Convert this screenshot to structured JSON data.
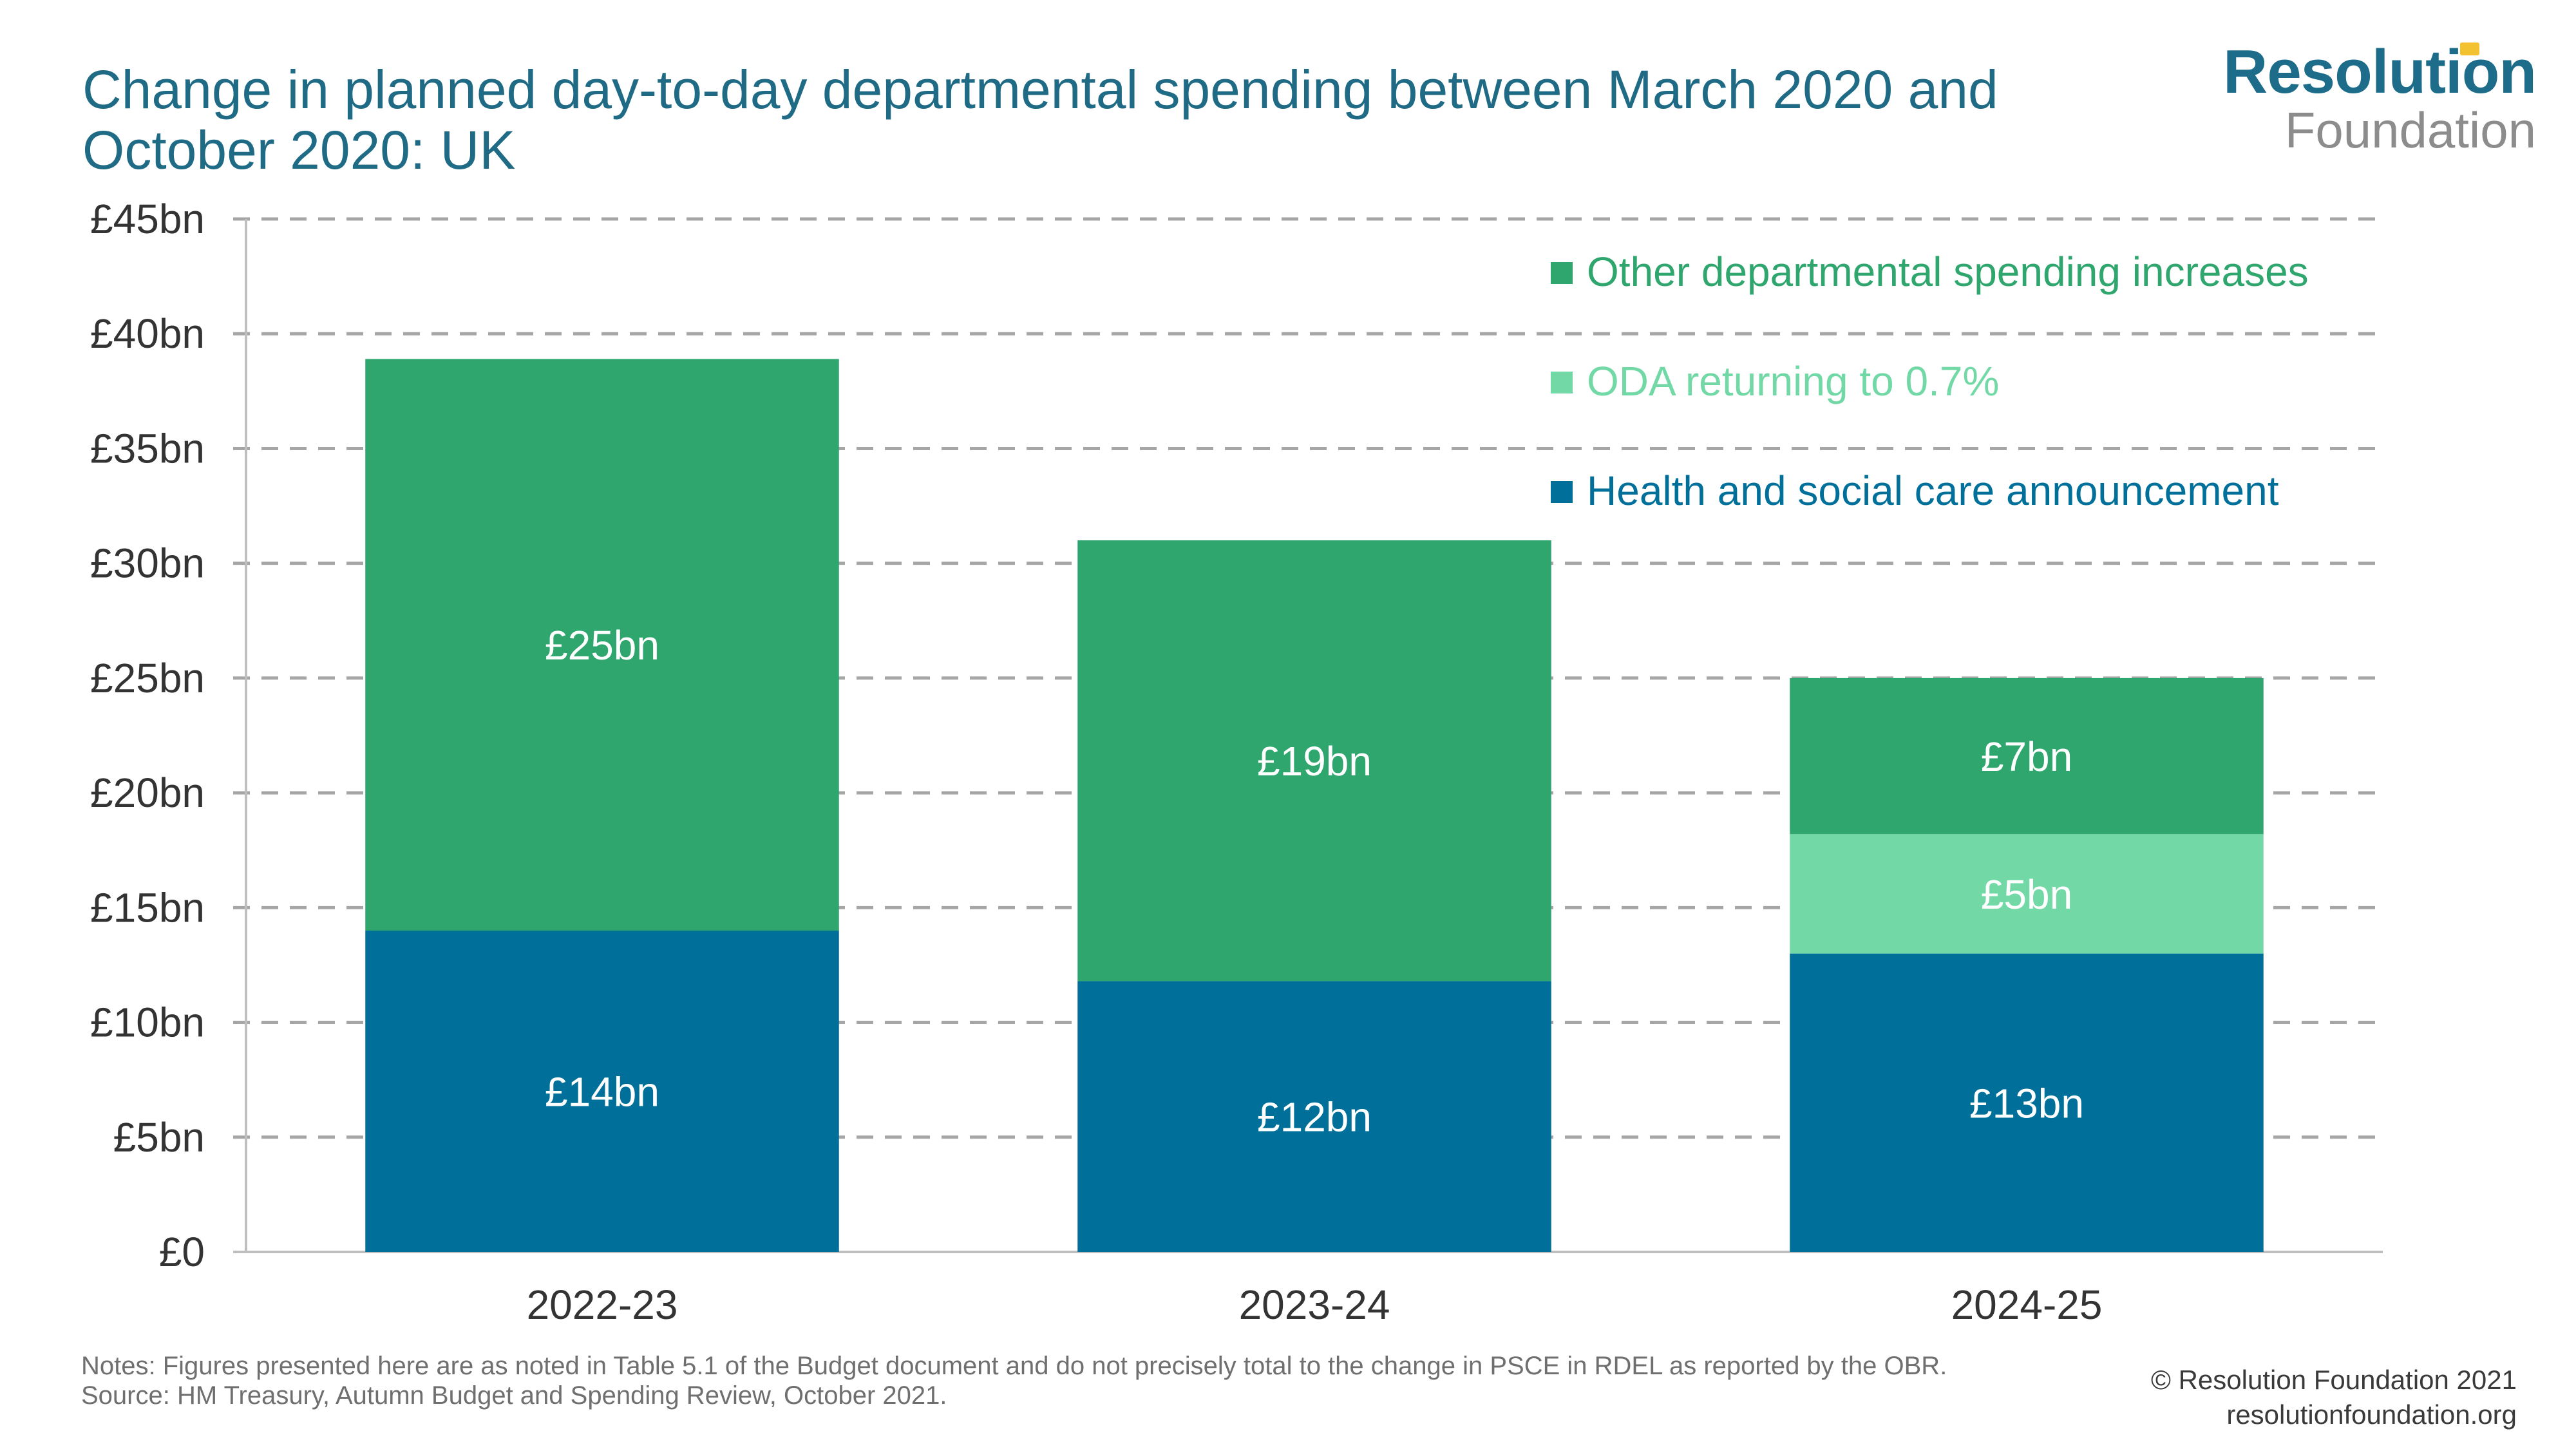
{
  "title": "Change in planned day-to-day departmental spending between March 2020 and October 2020: UK",
  "logo": {
    "main": "Resolution",
    "sub": "Foundation"
  },
  "notes": "Notes: Figures presented here are as noted in Table 5.1 of the Budget document and do not precisely total to the change in PSCE in RDEL as reported by the OBR.",
  "source": "Source: HM Treasury, Autumn Budget and Spending Review, October 2021.",
  "copyright": "© Resolution Foundation 2021",
  "website": "resolutionfoundation.org",
  "colors": {
    "health": "#00709a",
    "oda": "#72d9a6",
    "other": "#2ea66d",
    "grid": "#a6a6a6",
    "axis": "#bfbfbf"
  },
  "chart_data": {
    "type": "bar",
    "stacked": true,
    "categories": [
      "2022-23",
      "2023-24",
      "2024-25"
    ],
    "ylim": [
      0,
      45
    ],
    "yticks": [
      0,
      5,
      10,
      15,
      20,
      25,
      30,
      35,
      40,
      45
    ],
    "ytick_labels": [
      "£0",
      "£5bn",
      "£10bn",
      "£15bn",
      "£20bn",
      "£25bn",
      "£30bn",
      "£35bn",
      "£40bn",
      "£45bn"
    ],
    "grid": true,
    "legend_position": "top-right",
    "series": [
      {
        "name": "Health and social care announcement",
        "color": "#00709a",
        "values": [
          14,
          11.8,
          13
        ],
        "labels": [
          "£14bn",
          "£12bn",
          "£13bn"
        ]
      },
      {
        "name": "ODA returning to 0.7%",
        "color": "#72d9a6",
        "values": [
          0,
          0,
          5.2
        ],
        "labels": [
          "",
          "",
          "£5bn"
        ]
      },
      {
        "name": "Other departmental spending increases",
        "color": "#2ea66d",
        "values": [
          24.9,
          19.2,
          6.8
        ],
        "labels": [
          "£25bn",
          "£19bn",
          "£7bn"
        ]
      }
    ],
    "legend_order": [
      2,
      1,
      0
    ]
  }
}
